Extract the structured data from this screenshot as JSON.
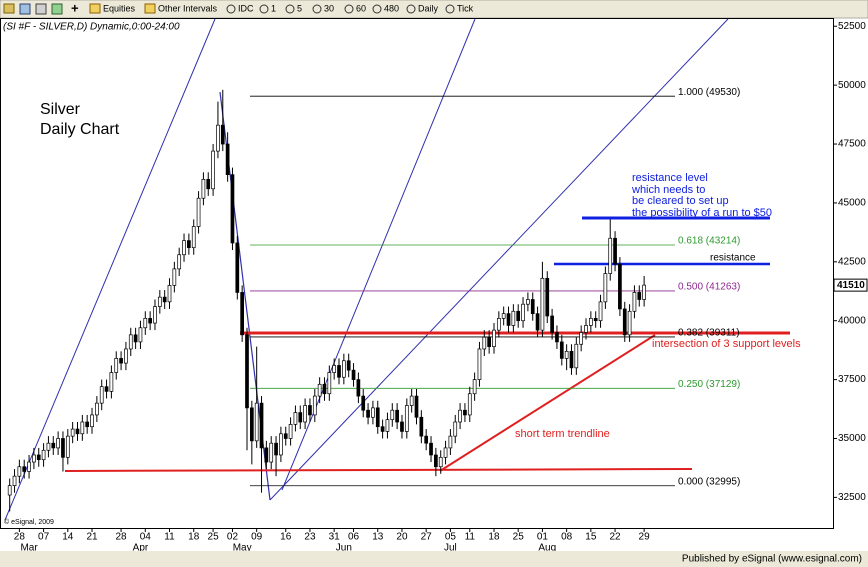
{
  "toolbar": {
    "items": [
      "Equities",
      "Other Intervals",
      "IDC",
      "1",
      "5",
      "30",
      "60",
      "480",
      "Daily",
      "Tick"
    ]
  },
  "footer": "Published by eSignal (www.esignal.com)",
  "chart_data": {
    "type": "candlestick",
    "header": "(SI #F - SILVER,D) Dynamic,0:00-24:00",
    "xlim": [
      -2,
      170
    ],
    "ylim": [
      31200,
      52850
    ],
    "yticks": [
      32500,
      35000,
      37500,
      40000,
      42500,
      45000,
      47500,
      50000,
      52500
    ],
    "last_price": 41510,
    "xticks": [
      {
        "value": 2,
        "label": "28"
      },
      {
        "value": 7,
        "label": "07"
      },
      {
        "value": 12,
        "label": "14"
      },
      {
        "value": 17,
        "label": "21"
      },
      {
        "value": 23,
        "label": "28"
      },
      {
        "value": 28,
        "label": "04"
      },
      {
        "value": 33,
        "label": "11"
      },
      {
        "value": 38,
        "label": "18"
      },
      {
        "value": 42,
        "label": "25"
      },
      {
        "value": 46,
        "label": "02"
      },
      {
        "value": 51,
        "label": "09"
      },
      {
        "value": 57,
        "label": "16"
      },
      {
        "value": 62,
        "label": "23"
      },
      {
        "value": 67,
        "label": "31"
      },
      {
        "value": 71,
        "label": "06"
      },
      {
        "value": 76,
        "label": "13"
      },
      {
        "value": 81,
        "label": "20"
      },
      {
        "value": 86,
        "label": "27"
      },
      {
        "value": 91,
        "label": "05"
      },
      {
        "value": 95,
        "label": "11"
      },
      {
        "value": 100,
        "label": "18"
      },
      {
        "value": 105,
        "label": "25"
      },
      {
        "value": 110,
        "label": "01"
      },
      {
        "value": 115,
        "label": "08"
      },
      {
        "value": 120,
        "label": "15"
      },
      {
        "value": 125,
        "label": "22"
      },
      {
        "value": 131,
        "label": "29"
      }
    ],
    "month_labels": [
      {
        "value": 4,
        "label": "Mar"
      },
      {
        "value": 27,
        "label": "Apr"
      },
      {
        "value": 48,
        "label": "May"
      },
      {
        "value": 69,
        "label": "Jun"
      },
      {
        "value": 91,
        "label": "Jul"
      },
      {
        "value": 111,
        "label": "Aug"
      }
    ],
    "fib_levels": [
      {
        "value": 49530,
        "label": "1.000 (49530)",
        "color": "#000000"
      },
      {
        "value": 43214,
        "label": "0.618 (43214)",
        "color": "#2e9a2e"
      },
      {
        "value": 41263,
        "label": "0.500 (41263)",
        "color": "#8e2a8e"
      },
      {
        "value": 39311,
        "label": "0.382 (39311)",
        "color": "#000000"
      },
      {
        "value": 37129,
        "label": "0.250 (37129)",
        "color": "#2e9a2e"
      },
      {
        "value": 32995,
        "label": "0.000 (32995)",
        "color": "#000000"
      }
    ],
    "annotations": {
      "title": [
        "Silver",
        "Daily Chart"
      ],
      "resistance_note": [
        "resistance level",
        "which needs to",
        "be cleared to set up",
        "the possibility of a run to $50"
      ],
      "resistance": "resistance",
      "support_note": "intersection of 3 support levels",
      "trendline": "short term trendline",
      "copyright": "© eSignal, 2009"
    },
    "ohlc": [
      [
        32600,
        33300,
        31900,
        33000
      ],
      [
        33000,
        33700,
        32700,
        33400
      ],
      [
        33400,
        34100,
        33100,
        33800
      ],
      [
        33800,
        34100,
        33300,
        33600
      ],
      [
        33600,
        34300,
        33300,
        34000
      ],
      [
        34000,
        34600,
        33700,
        34300
      ],
      [
        34300,
        34600,
        33800,
        34100
      ],
      [
        34100,
        34800,
        33800,
        34500
      ],
      [
        34500,
        35100,
        34200,
        34800
      ],
      [
        34800,
        35100,
        34300,
        34600
      ],
      [
        34600,
        35300,
        34300,
        35000
      ],
      [
        35000,
        35300,
        33600,
        34200
      ],
      [
        34200,
        35400,
        33900,
        35100
      ],
      [
        35100,
        35700,
        34800,
        35400
      ],
      [
        35400,
        35700,
        34900,
        35200
      ],
      [
        35200,
        36000,
        34900,
        35700
      ],
      [
        35700,
        36000,
        35200,
        35500
      ],
      [
        35500,
        36300,
        35200,
        36000
      ],
      [
        36000,
        36800,
        35700,
        36500
      ],
      [
        36500,
        37500,
        36200,
        37200
      ],
      [
        37200,
        37500,
        36700,
        37000
      ],
      [
        37000,
        38100,
        36700,
        37800
      ],
      [
        37800,
        38700,
        37500,
        38400
      ],
      [
        38400,
        38700,
        37900,
        38200
      ],
      [
        38200,
        39100,
        37900,
        38800
      ],
      [
        38800,
        39700,
        38500,
        39400
      ],
      [
        39400,
        39700,
        38800,
        39100
      ],
      [
        39100,
        40000,
        38800,
        39700
      ],
      [
        39700,
        40400,
        39400,
        40100
      ],
      [
        40100,
        40400,
        39600,
        39900
      ],
      [
        39900,
        40900,
        39600,
        40600
      ],
      [
        40600,
        41300,
        40300,
        41000
      ],
      [
        41000,
        41300,
        40500,
        40800
      ],
      [
        40800,
        41800,
        40500,
        41500
      ],
      [
        41500,
        42500,
        41200,
        42200
      ],
      [
        42200,
        43100,
        41900,
        42800
      ],
      [
        42800,
        43700,
        42500,
        43400
      ],
      [
        43400,
        43700,
        42800,
        43100
      ],
      [
        43100,
        44300,
        42800,
        44000
      ],
      [
        44000,
        45500,
        43700,
        45200
      ],
      [
        45200,
        46300,
        44900,
        46000
      ],
      [
        46000,
        46300,
        45300,
        45600
      ],
      [
        45600,
        47500,
        45300,
        47200
      ],
      [
        47200,
        49300,
        46900,
        48300
      ],
      [
        48300,
        49800,
        47200,
        47500
      ],
      [
        47500,
        48000,
        45900,
        46200
      ],
      [
        46200,
        46500,
        43000,
        43300
      ],
      [
        43300,
        43600,
        40900,
        41200
      ],
      [
        41200,
        41500,
        39100,
        39400
      ],
      [
        39400,
        39700,
        34500,
        36300
      ],
      [
        36300,
        36600,
        33900,
        34900
      ],
      [
        34900,
        38900,
        34600,
        36500
      ],
      [
        36500,
        36800,
        32700,
        34600
      ],
      [
        34600,
        34900,
        33700,
        34000
      ],
      [
        34000,
        35100,
        33700,
        34800
      ],
      [
        34800,
        35100,
        33400,
        34300
      ],
      [
        34300,
        35500,
        34000,
        35200
      ],
      [
        35200,
        35500,
        34700,
        35000
      ],
      [
        35000,
        35900,
        34700,
        35600
      ],
      [
        35600,
        36400,
        35300,
        36100
      ],
      [
        36100,
        36400,
        35400,
        35700
      ],
      [
        35700,
        36700,
        35400,
        36400
      ],
      [
        36400,
        36700,
        35700,
        36000
      ],
      [
        36000,
        37100,
        35700,
        36800
      ],
      [
        36800,
        37600,
        36500,
        37300
      ],
      [
        37300,
        37600,
        36600,
        36900
      ],
      [
        36900,
        38100,
        36600,
        37800
      ],
      [
        37800,
        38400,
        37500,
        38100
      ],
      [
        38100,
        38400,
        37300,
        37600
      ],
      [
        37600,
        38600,
        37300,
        38300
      ],
      [
        38300,
        38600,
        37600,
        37900
      ],
      [
        37900,
        38200,
        37200,
        37500
      ],
      [
        37500,
        37800,
        36500,
        36800
      ],
      [
        36800,
        37100,
        35900,
        36200
      ],
      [
        36200,
        36500,
        35600,
        35900
      ],
      [
        35900,
        36600,
        35600,
        36300
      ],
      [
        36300,
        36600,
        35200,
        35500
      ],
      [
        35500,
        35800,
        35000,
        35300
      ],
      [
        35300,
        36100,
        35000,
        35800
      ],
      [
        35800,
        36500,
        35500,
        36200
      ],
      [
        36200,
        36500,
        35400,
        35700
      ],
      [
        35700,
        36000,
        35000,
        35300
      ],
      [
        35300,
        36700,
        35000,
        36400
      ],
      [
        36400,
        37100,
        36100,
        36800
      ],
      [
        36800,
        37100,
        35600,
        35900
      ],
      [
        35900,
        36200,
        34800,
        35100
      ],
      [
        35100,
        35400,
        34500,
        34800
      ],
      [
        34800,
        35100,
        34000,
        34300
      ],
      [
        34300,
        34600,
        33400,
        33800
      ],
      [
        33800,
        34500,
        33500,
        34200
      ],
      [
        34200,
        34900,
        33900,
        34600
      ],
      [
        34600,
        35400,
        34300,
        35100
      ],
      [
        35100,
        36000,
        34800,
        35700
      ],
      [
        35700,
        36500,
        35400,
        36200
      ],
      [
        36200,
        36500,
        35700,
        36000
      ],
      [
        36000,
        37200,
        35700,
        36900
      ],
      [
        36900,
        37800,
        36600,
        37500
      ],
      [
        37500,
        39100,
        37200,
        38800
      ],
      [
        38800,
        39600,
        38500,
        39300
      ],
      [
        39300,
        39600,
        38600,
        38900
      ],
      [
        38900,
        39900,
        38600,
        39600
      ],
      [
        39600,
        40400,
        39300,
        40100
      ],
      [
        40100,
        40600,
        39800,
        40300
      ],
      [
        40300,
        40600,
        39500,
        39800
      ],
      [
        39800,
        40700,
        39500,
        40400
      ],
      [
        40400,
        40700,
        39700,
        40000
      ],
      [
        40000,
        41000,
        39700,
        40700
      ],
      [
        40700,
        41200,
        40400,
        40900
      ],
      [
        40900,
        41200,
        40000,
        40300
      ],
      [
        40300,
        40600,
        39300,
        39600
      ],
      [
        39600,
        42500,
        39300,
        41800
      ],
      [
        41800,
        42100,
        39900,
        40200
      ],
      [
        40200,
        40500,
        39200,
        39500
      ],
      [
        39500,
        39800,
        38800,
        39100
      ],
      [
        39100,
        39400,
        38100,
        38400
      ],
      [
        38400,
        39000,
        37900,
        38700
      ],
      [
        38700,
        39000,
        37700,
        38000
      ],
      [
        38000,
        39300,
        37700,
        39000
      ],
      [
        39000,
        39800,
        38700,
        39500
      ],
      [
        39500,
        40100,
        39200,
        39800
      ],
      [
        39800,
        40400,
        39500,
        40100
      ],
      [
        40100,
        40400,
        39700,
        40000
      ],
      [
        40000,
        41100,
        39700,
        40800
      ],
      [
        40800,
        42300,
        40500,
        42000
      ],
      [
        42000,
        44300,
        41700,
        43500
      ],
      [
        43500,
        43800,
        42100,
        42400
      ],
      [
        42400,
        42700,
        40200,
        40500
      ],
      [
        40500,
        40800,
        39100,
        39400
      ],
      [
        39400,
        40700,
        39100,
        40400
      ],
      [
        40400,
        41500,
        40100,
        41200
      ],
      [
        41200,
        41500,
        40600,
        40900
      ],
      [
        40900,
        41900,
        40600,
        41510
      ]
    ]
  }
}
